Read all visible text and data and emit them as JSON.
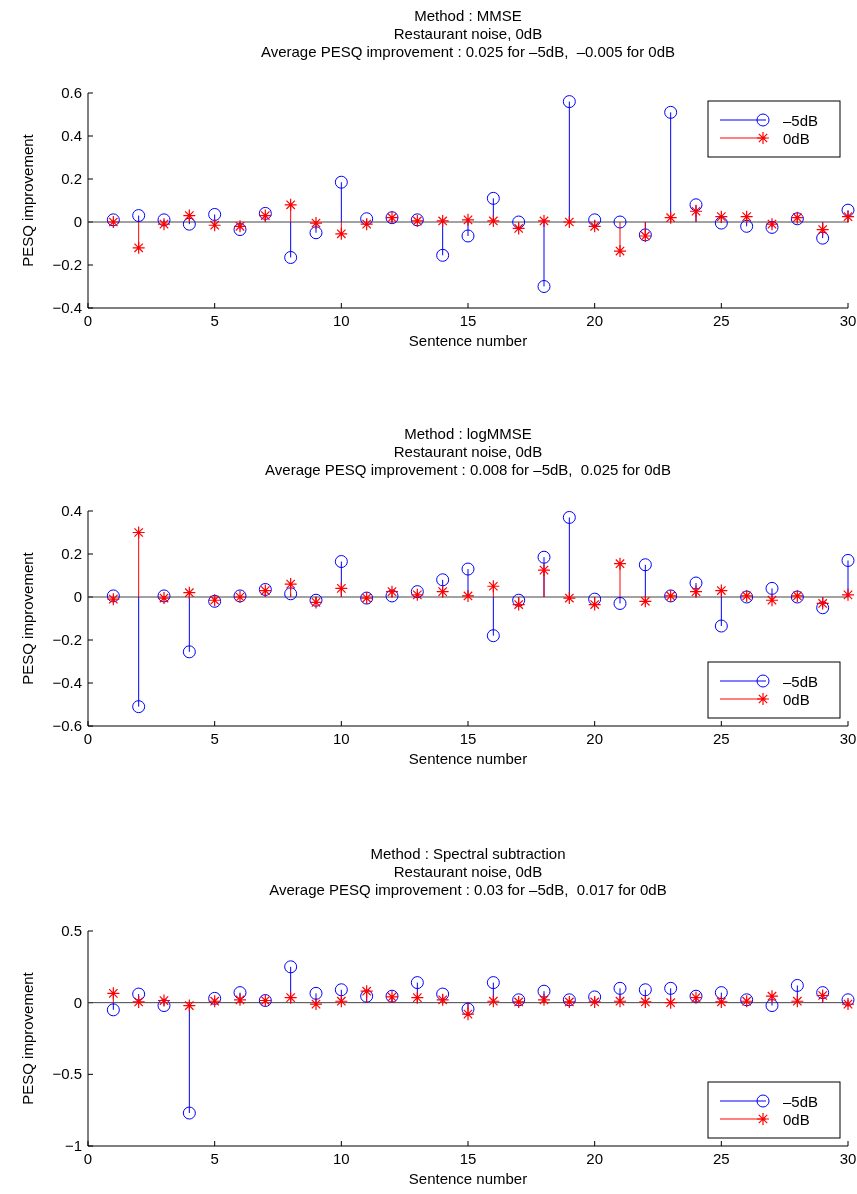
{
  "chart_data": [
    {
      "type": "lollipop",
      "title": "Method : MMSE",
      "subtitle": "Restaurant noise, 0dB\nAverage PESQ improvement : 0.025 for –5dB,  –0.005 for 0dB",
      "xlabel": "Sentence number",
      "ylabel": "PESQ improvement",
      "x": [
        1,
        2,
        3,
        4,
        5,
        6,
        7,
        8,
        9,
        10,
        11,
        12,
        13,
        14,
        15,
        16,
        17,
        18,
        19,
        20,
        21,
        22,
        23,
        24,
        25,
        26,
        27,
        28,
        29,
        30
      ],
      "xlim": [
        0,
        30
      ],
      "xticks": [
        0,
        5,
        10,
        15,
        20,
        25,
        30
      ],
      "ylim": [
        -0.4,
        0.6
      ],
      "yticks": [
        -0.4,
        -0.2,
        0,
        0.2,
        0.4,
        0.6
      ],
      "legend": "top right",
      "series": [
        {
          "name": "–5dB",
          "color": "#0000ff",
          "marker": "circle",
          "values": [
            0.01,
            0.03,
            0.01,
            -0.01,
            0.035,
            -0.035,
            0.04,
            -0.165,
            -0.05,
            0.185,
            0.015,
            0.02,
            0.01,
            -0.155,
            -0.065,
            0.11,
            0.0,
            -0.3,
            0.56,
            0.01,
            0.0,
            -0.06,
            0.51,
            0.08,
            -0.005,
            -0.02,
            -0.025,
            0.015,
            -0.075,
            0.055
          ]
        },
        {
          "name": "0dB",
          "color": "#ff0000",
          "marker": "cross",
          "values": [
            0.0,
            -0.12,
            -0.01,
            0.03,
            -0.015,
            -0.02,
            0.03,
            0.08,
            -0.005,
            -0.055,
            -0.01,
            0.02,
            0.005,
            0.005,
            0.01,
            0.005,
            -0.03,
            0.005,
            0.0,
            -0.02,
            -0.135,
            -0.065,
            0.02,
            0.05,
            0.025,
            0.025,
            -0.01,
            0.02,
            -0.035,
            0.025
          ]
        }
      ]
    },
    {
      "type": "lollipop",
      "title": "Method : logMMSE",
      "subtitle": "Restaurant noise, 0dB\nAverage PESQ improvement : 0.008 for –5dB,  0.025 for 0dB",
      "xlabel": "Sentence number",
      "ylabel": "PESQ improvement",
      "x": [
        1,
        2,
        3,
        4,
        5,
        6,
        7,
        8,
        9,
        10,
        11,
        12,
        13,
        14,
        15,
        16,
        17,
        18,
        19,
        20,
        21,
        22,
        23,
        24,
        25,
        26,
        27,
        28,
        29,
        30
      ],
      "xlim": [
        0,
        30
      ],
      "xticks": [
        0,
        5,
        10,
        15,
        20,
        25,
        30
      ],
      "ylim": [
        -0.6,
        0.4
      ],
      "yticks": [
        -0.6,
        -0.4,
        -0.2,
        0,
        0.2,
        0.4
      ],
      "legend": "bottom right",
      "series": [
        {
          "name": "–5dB",
          "color": "#0000ff",
          "marker": "circle",
          "values": [
            0.005,
            -0.51,
            0.005,
            -0.255,
            -0.02,
            0.005,
            0.035,
            0.015,
            -0.015,
            0.165,
            -0.005,
            0.005,
            0.025,
            0.08,
            0.13,
            -0.18,
            -0.015,
            0.185,
            0.37,
            -0.01,
            -0.03,
            0.15,
            0.005,
            0.065,
            -0.135,
            0.0,
            0.04,
            0.0,
            -0.05,
            0.17
          ]
        },
        {
          "name": "0dB",
          "color": "#ff0000",
          "marker": "cross",
          "values": [
            -0.01,
            0.3,
            -0.005,
            0.02,
            -0.015,
            0.0,
            0.03,
            0.06,
            -0.025,
            0.04,
            -0.005,
            0.025,
            0.01,
            0.025,
            0.005,
            0.05,
            -0.035,
            0.125,
            -0.005,
            -0.035,
            0.155,
            -0.02,
            0.005,
            0.025,
            0.03,
            0.005,
            -0.015,
            0.005,
            -0.03,
            0.01
          ]
        }
      ]
    },
    {
      "type": "lollipop",
      "title": "Method : Spectral subtraction",
      "subtitle": "Restaurant noise, 0dB\nAverage PESQ improvement : 0.03 for –5dB,  0.017 for 0dB",
      "xlabel": "Sentence number",
      "ylabel": "PESQ improvement",
      "x": [
        1,
        2,
        3,
        4,
        5,
        6,
        7,
        8,
        9,
        10,
        11,
        12,
        13,
        14,
        15,
        16,
        17,
        18,
        19,
        20,
        21,
        22,
        23,
        24,
        25,
        26,
        27,
        28,
        29,
        30
      ],
      "xlim": [
        0,
        30
      ],
      "xticks": [
        0,
        5,
        10,
        15,
        20,
        25,
        30
      ],
      "ylim": [
        -1,
        0.5
      ],
      "yticks": [
        -1,
        -0.5,
        0,
        0.5
      ],
      "legend": "bottom right",
      "series": [
        {
          "name": "–5dB",
          "color": "#0000ff",
          "marker": "circle",
          "values": [
            -0.05,
            0.06,
            -0.02,
            -0.77,
            0.03,
            0.07,
            0.015,
            0.25,
            0.065,
            0.09,
            0.045,
            0.045,
            0.14,
            0.06,
            -0.045,
            0.14,
            0.02,
            0.08,
            0.02,
            0.04,
            0.1,
            0.09,
            0.1,
            0.045,
            0.07,
            0.02,
            -0.02,
            0.12,
            0.07,
            0.02
          ]
        },
        {
          "name": "0dB",
          "color": "#ff0000",
          "marker": "cross",
          "values": [
            0.065,
            0.005,
            0.015,
            -0.02,
            0.01,
            0.02,
            0.015,
            0.035,
            -0.01,
            0.01,
            0.08,
            0.04,
            0.035,
            0.02,
            -0.08,
            0.01,
            0.005,
            0.02,
            0.005,
            0.005,
            0.01,
            0.005,
            0.0,
            0.035,
            0.005,
            0.01,
            0.045,
            0.01,
            0.05,
            -0.01
          ]
        }
      ]
    }
  ]
}
